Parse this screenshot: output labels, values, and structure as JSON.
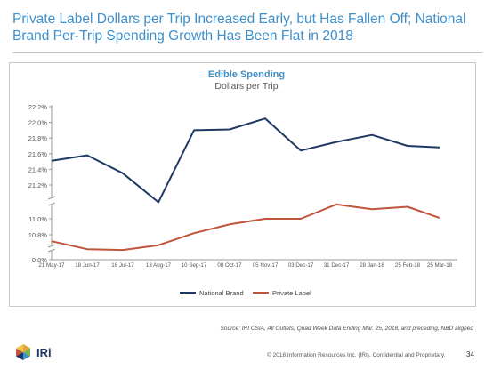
{
  "slide": {
    "title": "Private Label Dollars per Trip Increased Early, but Has Fallen Off; National Brand Per-Trip Spending Growth Has Been Flat in 2018",
    "source": "Source: IRI CSIA, All Outlets, Quad Week Data Ending Mar. 25, 2018, and preceding, NBD aligned",
    "footer": "© 2018 Information Resources Inc. (IRI). Confidential and Proprietary.",
    "page_number": "34",
    "logo_text": "IRi",
    "colors": {
      "title": "#3f8fc9",
      "national_brand": "#1f3864",
      "private_label": "#c0553b"
    }
  },
  "chart_data": {
    "type": "line",
    "title": "Edible Spending",
    "subtitle": "Dollars per Trip",
    "categories": [
      "21 May-17",
      "18 Jun-17",
      "16 Jul-17",
      "13 Aug-17",
      "10 Sep-17",
      "08 Oct-17",
      "05 Nov-17",
      "03 Dec-17",
      "31 Dec-17",
      "28 Jan-18",
      "25 Feb-18",
      "25 Mar-18"
    ],
    "x": [
      0,
      1,
      2,
      3,
      4,
      5,
      6,
      7,
      8,
      9,
      10,
      10.9
    ],
    "yticks_upper": [
      "22.2%",
      "22.0%",
      "21.8%",
      "21.6%",
      "21.4%",
      "21.2%"
    ],
    "yticks_lower": [
      "11.0%",
      "10.8%",
      "0.0%"
    ],
    "axis_break": true,
    "legend_position": "bottom",
    "series": [
      {
        "name": "National Brand",
        "values": [
          21.51,
          21.58,
          21.35,
          20.98,
          21.9,
          21.91,
          22.05,
          21.64,
          21.75,
          21.84,
          21.7,
          21.68
        ]
      },
      {
        "name": "Private Label",
        "values": [
          10.72,
          10.62,
          10.61,
          10.67,
          10.82,
          10.93,
          11.0,
          11.0,
          11.18,
          11.12,
          11.15,
          11.01
        ]
      }
    ]
  }
}
